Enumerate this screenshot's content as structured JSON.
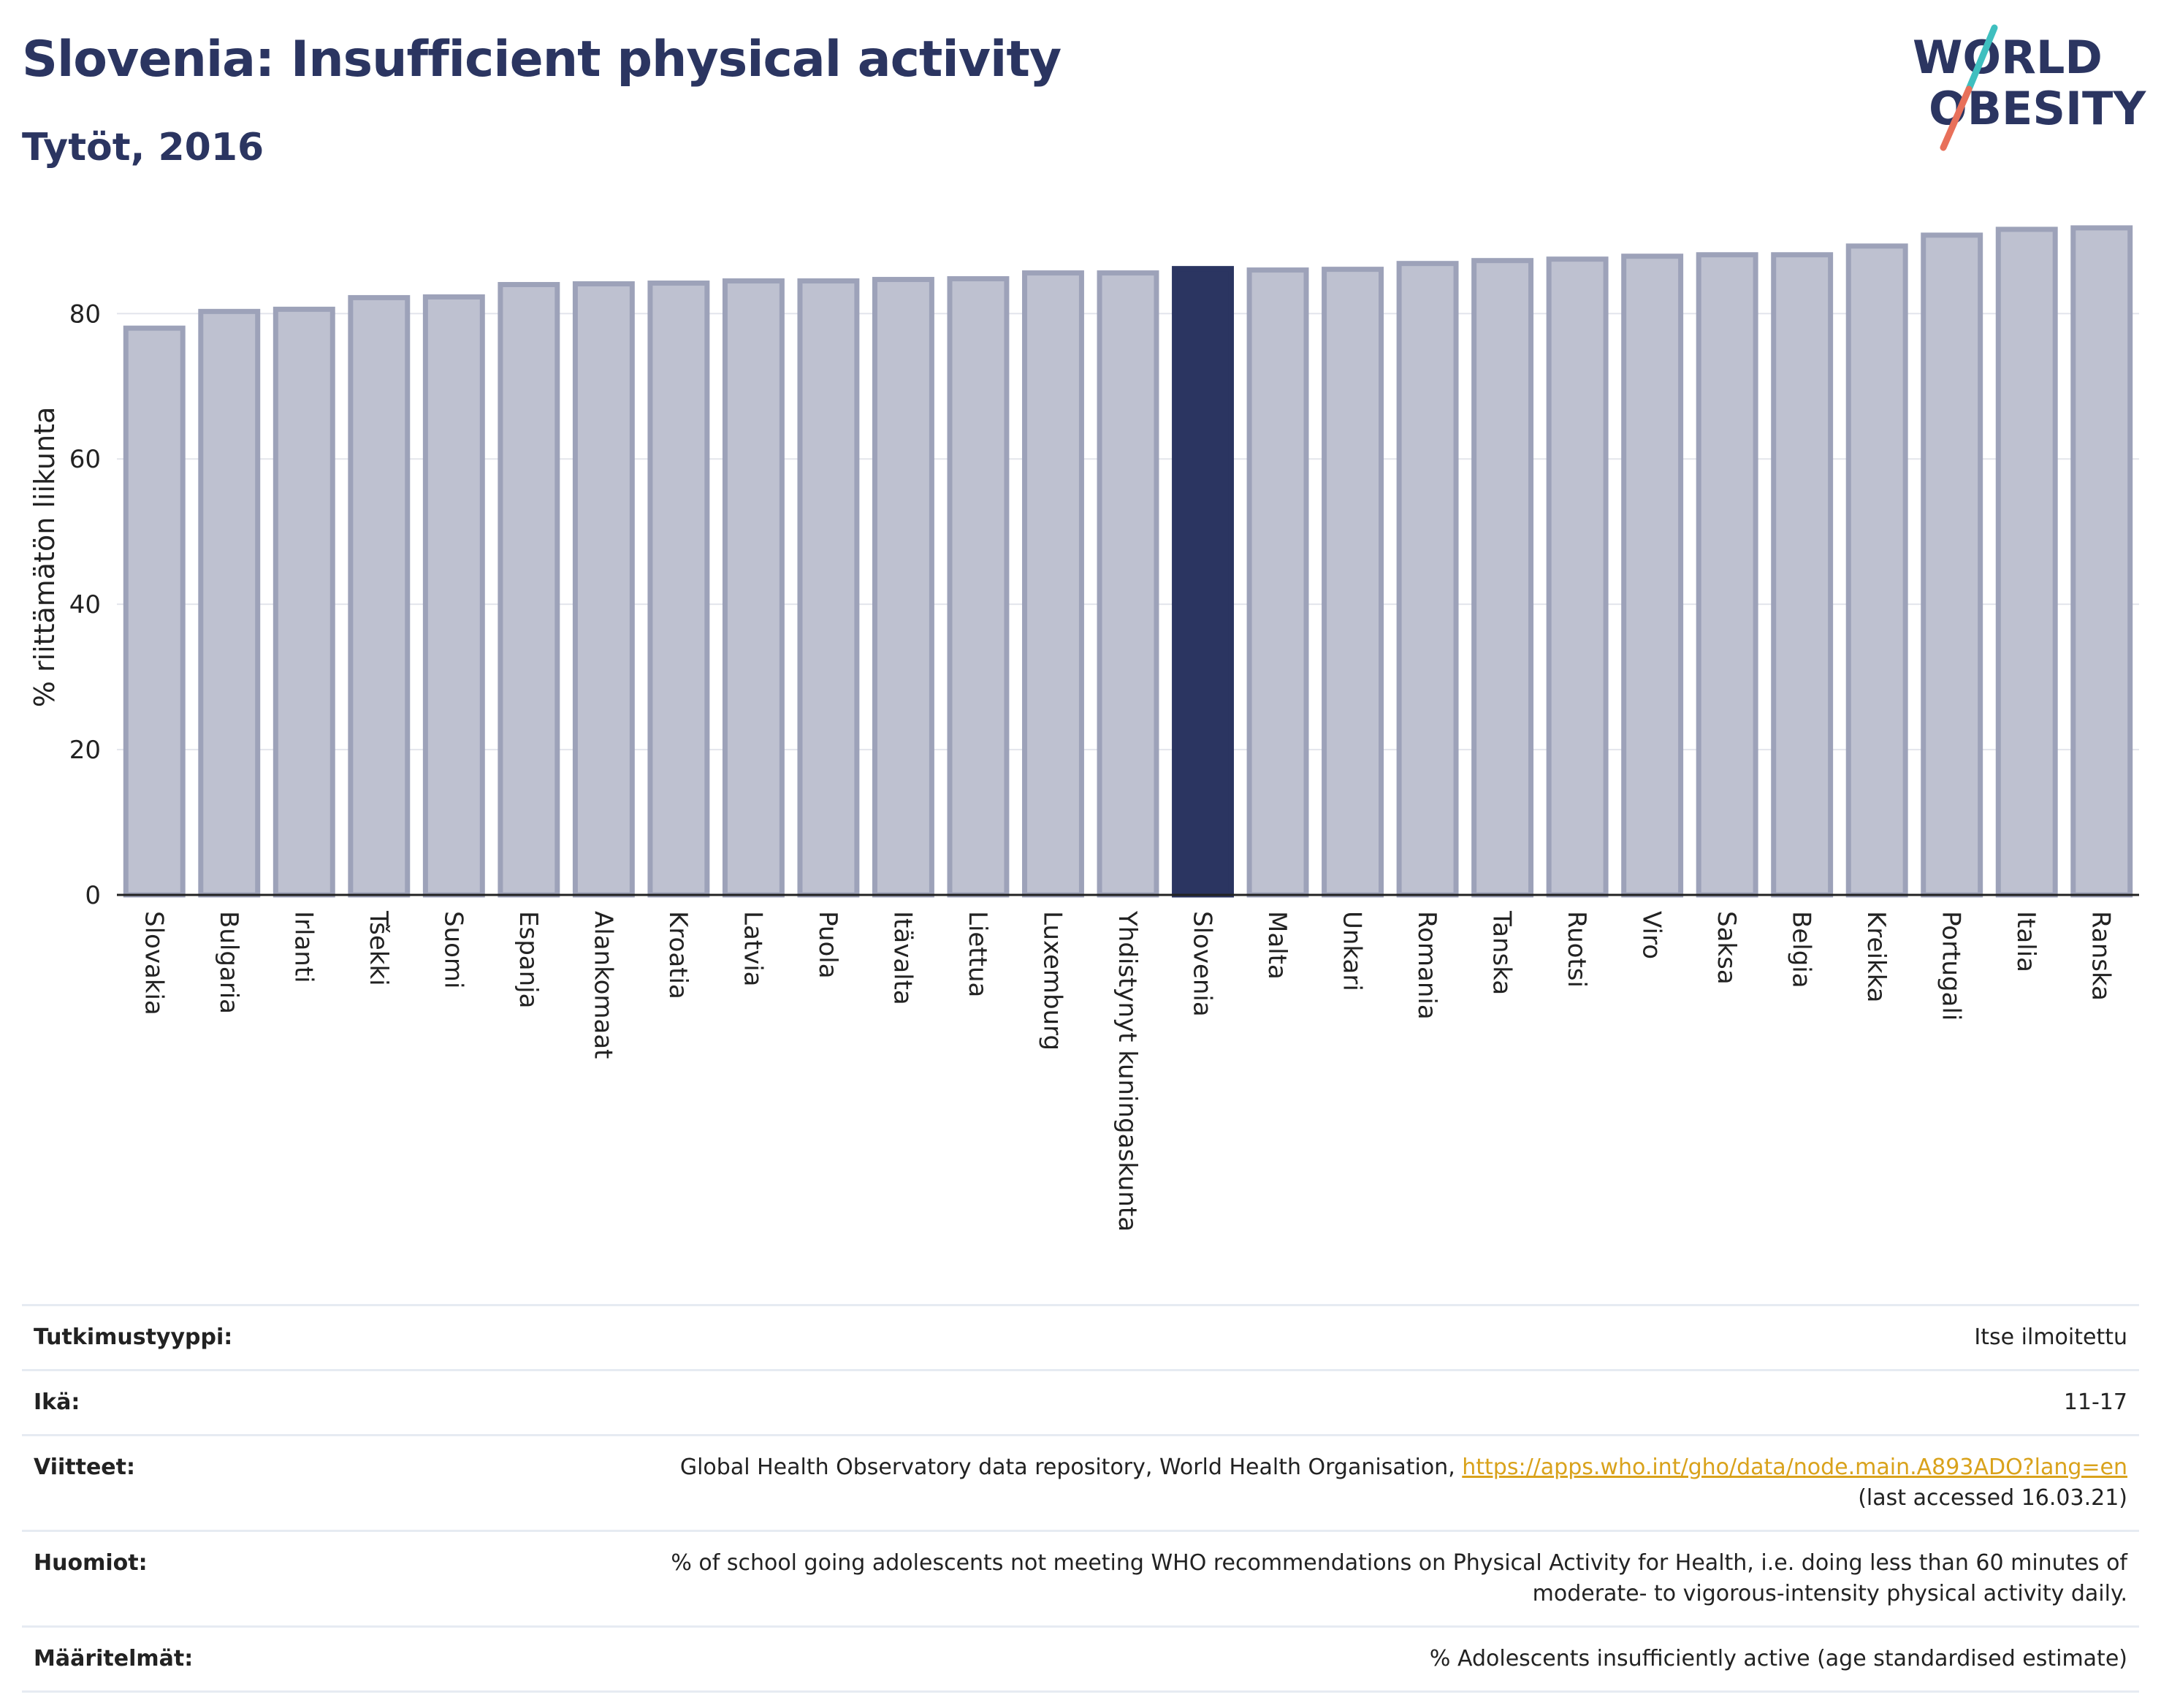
{
  "header": {
    "title": "Slovenia: Insufficient physical activity",
    "subtitle": "Tytöt, 2016"
  },
  "logo": {
    "line1": "WORLD",
    "line2": "OBESITY",
    "colors": {
      "text": "#2b3561",
      "slash_top": "#3fbfbf",
      "slash_bottom": "#e8705a"
    }
  },
  "colors": {
    "bar": "#bec1d0",
    "bar_stroke": "#9da2b9",
    "highlight": "#2b3561",
    "grid": "#e3e5ec",
    "axis": "#222222"
  },
  "chart_data": {
    "type": "bar",
    "ylabel": "% riittämätön liikunta",
    "ylim": [
      0,
      93
    ],
    "yticks": [
      0,
      20,
      40,
      60,
      80
    ],
    "grid": true,
    "highlight": "Slovenia",
    "categories": [
      "Slovakia",
      "Bulgaria",
      "Irlanti",
      "Tšekki",
      "Suomi",
      "Espanja",
      "Alankomaat",
      "Kroatia",
      "Latvia",
      "Puola",
      "Itävalta",
      "Liettua",
      "Luxemburg",
      "Yhdistynyt kuningaskunta",
      "Slovenia",
      "Malta",
      "Unkari",
      "Romania",
      "Tanska",
      "Ruotsi",
      "Viro",
      "Saksa",
      "Belgia",
      "Kreikka",
      "Portugali",
      "Italia",
      "Ranska"
    ],
    "values": [
      78.0,
      80.3,
      80.6,
      82.2,
      82.3,
      84.0,
      84.1,
      84.2,
      84.5,
      84.5,
      84.7,
      84.8,
      85.6,
      85.6,
      86.2,
      86.0,
      86.1,
      86.9,
      87.3,
      87.5,
      87.9,
      88.1,
      88.1,
      89.3,
      90.8,
      91.6,
      91.8
    ]
  },
  "info": {
    "rows": [
      {
        "key": "Tutkimustyyppi:",
        "value": "Itse ilmoitettu"
      },
      {
        "key": "Ikä:",
        "value": "11-17"
      },
      {
        "key": "Viitteet:",
        "value": "Global Health Observatory data repository, World Health Organisation, ",
        "link": "https://apps.who.int/gho/data/node.main.A893ADO?lang=en",
        "value2": "(last accessed 16.03.21)"
      },
      {
        "key": "Huomiot:",
        "value": "% of school going adolescents not meeting WHO recommendations on Physical Activity for Health, i.e. doing less than 60 minutes of",
        "value2": "moderate- to vigorous-intensity physical activity daily."
      },
      {
        "key": "Määritelmät:",
        "value": "% Adolescents insufficiently active (age standardised estimate)"
      }
    ]
  }
}
